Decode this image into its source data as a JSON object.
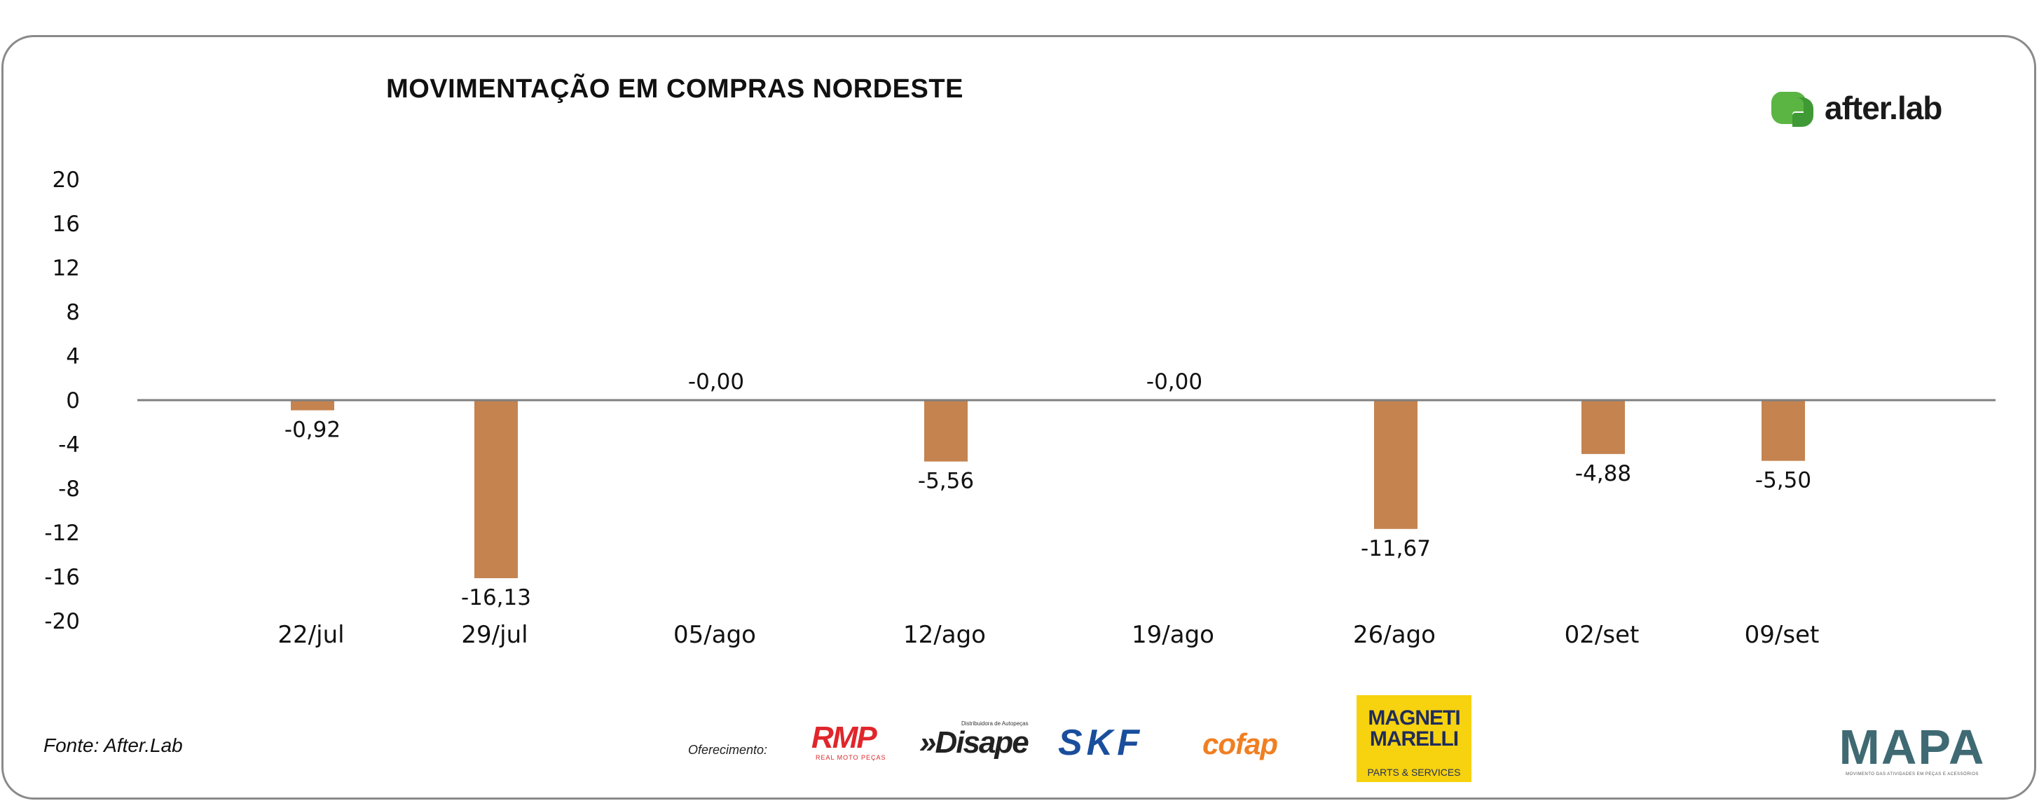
{
  "chart_data": {
    "type": "bar",
    "title": "MOVIMENTAÇÃO EM COMPRAS NORDESTE",
    "categories": [
      "22/jul",
      "29/jul",
      "05/ago",
      "12/ago",
      "19/ago",
      "26/ago",
      "02/set",
      "09/set"
    ],
    "values": [
      -0.92,
      -16.13,
      -0.0,
      -5.56,
      -0.0,
      -11.67,
      -4.88,
      -5.5
    ],
    "value_labels": [
      "-0,92",
      "-16,13",
      "-0,00",
      "-5,56",
      "-0,00",
      "-11,67",
      "-4,88",
      "-5,50"
    ],
    "y_ticks": [
      "20",
      "16",
      "12",
      "8",
      "4",
      "0",
      "-4",
      "-8",
      "-12",
      "-16",
      "-20"
    ],
    "ylim": [
      -20,
      20
    ],
    "xlabel": "",
    "ylabel": "",
    "grid": false,
    "legend": "none",
    "bar_color": "#c5834f",
    "axis_color": "#7f7f7f"
  },
  "footer": {
    "source": "Fonte: After.Lab",
    "offer_label": "Oferecimento:"
  },
  "logos": {
    "afterlab": "after.lab",
    "rmp": "RMP",
    "rmp_sub": "REAL MOTO PEÇAS",
    "disape_sub": "Distribuidora de Autopeças",
    "disape": "»Disape",
    "skf": "SKF",
    "cofap": "cofap",
    "magneti_line1": "MAGNETI",
    "magneti_line2": "MARELLI",
    "magneti_sub": "PARTS & SERVICES",
    "mapa": "MAPA",
    "mapa_sub": "MOVIMENTO DAS ATIVIDADES EM PEÇAS E ACESSÓRIOS"
  },
  "colors": {
    "afterlab_green": "#5bb543",
    "frame": "#8a8a8a"
  }
}
